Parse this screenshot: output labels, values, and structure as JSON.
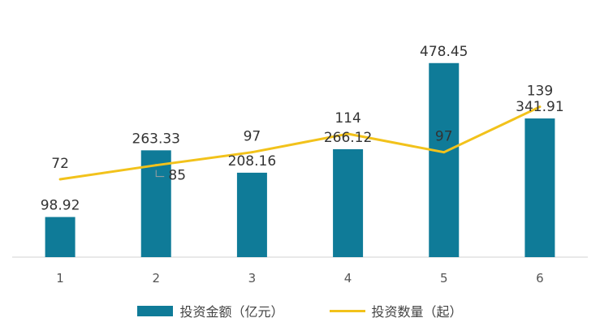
{
  "chart_data": {
    "type": "bar",
    "title": "",
    "xlabel": "",
    "ylabel": "",
    "categories": [
      "1",
      "2",
      "3",
      "4",
      "5",
      "6"
    ],
    "series": [
      {
        "name": "投资金额（亿元）",
        "type": "bar",
        "axis": "primary",
        "color": "#0f7b98",
        "values": [
          98.92,
          263.33,
          208.16,
          266.12,
          478.45,
          341.91
        ],
        "labels": [
          "98.92",
          "263.33",
          "208.16",
          "266.12",
          "478.45",
          "341.91"
        ]
      },
      {
        "name": "投资数量（起）",
        "type": "line",
        "axis": "secondary",
        "color": "#f2c21b",
        "values": [
          72,
          85,
          97,
          114,
          97,
          139
        ],
        "labels": [
          "72",
          "85",
          "97",
          "114",
          "97",
          "139"
        ]
      }
    ],
    "ylim": [
      0,
      600
    ],
    "y2lim": [
      0,
      225
    ],
    "grid": false,
    "legend_position": "bottom"
  }
}
